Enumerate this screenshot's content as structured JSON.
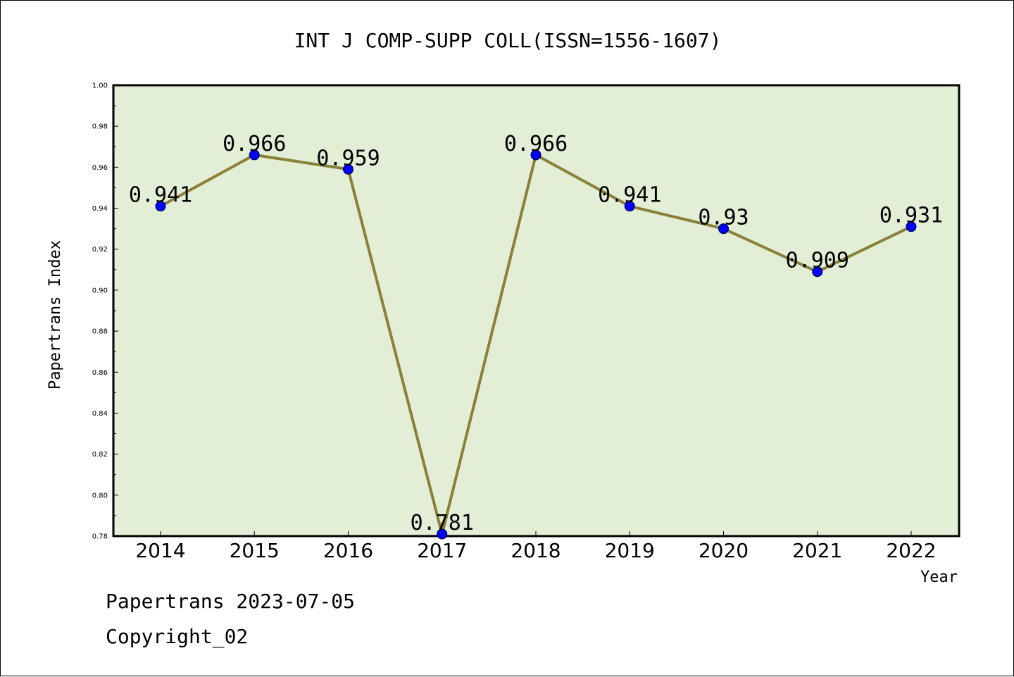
{
  "chart_data": {
    "type": "line",
    "title": "INT J COMP-SUPP COLL(ISSN=1556-1607)",
    "xlabel": "Year",
    "ylabel": "Papertrans Index",
    "categories": [
      "2014",
      "2015",
      "2016",
      "2017",
      "2018",
      "2019",
      "2020",
      "2021",
      "2022"
    ],
    "values": [
      0.941,
      0.966,
      0.959,
      0.781,
      0.966,
      0.941,
      0.93,
      0.909,
      0.931
    ],
    "data_labels": [
      "0.941",
      "0.966",
      "0.959",
      "0.781",
      "0.966",
      "0.941",
      "0.93",
      "0.909",
      "0.931"
    ],
    "ylim": [
      0.78,
      1.0
    ],
    "yticks": [
      "0.78",
      "0.80",
      "0.82",
      "0.84",
      "0.86",
      "0.88",
      "0.90",
      "0.92",
      "0.94",
      "0.96",
      "0.98",
      "1.00"
    ],
    "grid": false,
    "colors": {
      "plot_bg": "#e2efd6",
      "line": "#8b8038",
      "marker": "#0000ff"
    }
  },
  "footer": {
    "line1": "Papertrans 2023-07-05",
    "line2": "Copyright_02"
  }
}
